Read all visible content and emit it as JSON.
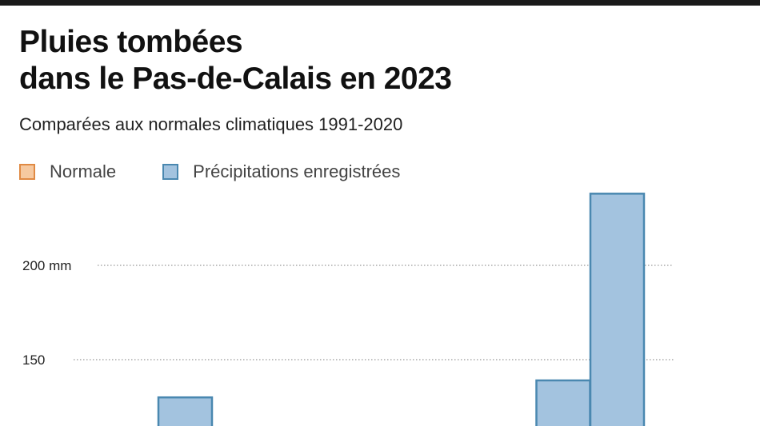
{
  "chart_data": {
    "type": "bar",
    "title": "Pluies tombées dans le Pas-de-Calais en 2023",
    "subtitle": "Comparées aux normales climatiques 1991-2020",
    "legend": [
      {
        "name": "Normale",
        "color": "#f6c9a0",
        "border": "#e08a44"
      },
      {
        "name": "Précipitations enregistrées",
        "color": "#a3c3df",
        "border": "#4a88b0"
      }
    ],
    "legend_position": "top-left",
    "y_ticks": [
      {
        "value": 200,
        "label": "200 mm"
      },
      {
        "value": 150,
        "label": "150"
      }
    ],
    "grid": true,
    "series": [
      {
        "name": "Précipitations enregistrées",
        "values": [
          null,
          null,
          130,
          null,
          null,
          null,
          null,
          null,
          null,
          139,
          238,
          null
        ]
      }
    ]
  }
}
